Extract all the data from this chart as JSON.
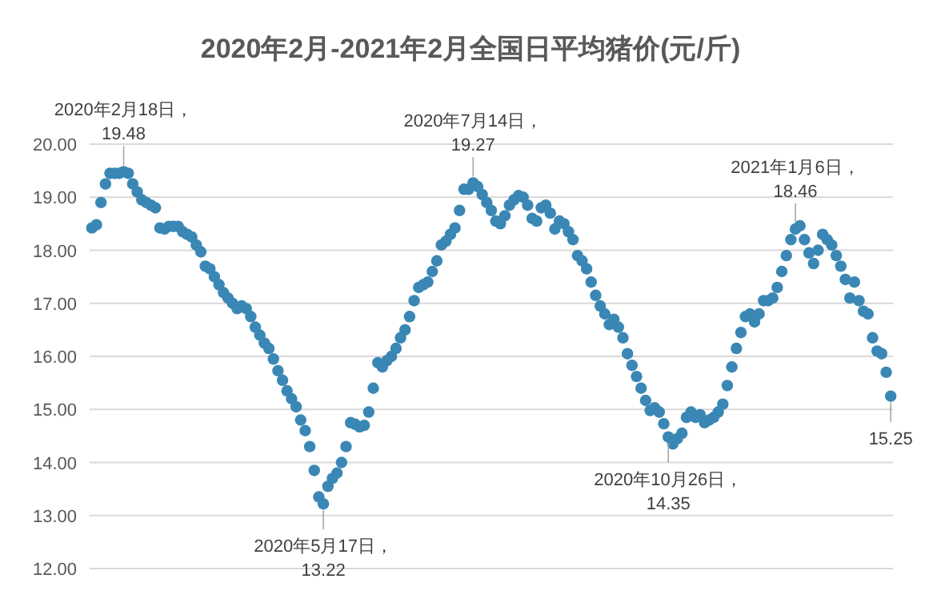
{
  "chart_data": {
    "type": "scatter",
    "title": "2020年2月-2021年2月全国日平均猪价(元/斤)",
    "color": "#3a87b5",
    "marker": "circle",
    "grid": "y",
    "tick_labels": "y",
    "ylim": [
      12,
      20
    ],
    "yticks": [
      {
        "value": 12,
        "label": "12.00"
      },
      {
        "value": 13,
        "label": "13.00"
      },
      {
        "value": 14,
        "label": "14.00"
      },
      {
        "value": 15,
        "label": "15.00"
      },
      {
        "value": 16,
        "label": "16.00"
      },
      {
        "value": 17,
        "label": "17.00"
      },
      {
        "value": 18,
        "label": "18.00"
      },
      {
        "value": 19,
        "label": "19.00"
      },
      {
        "value": 20,
        "label": "20.00"
      }
    ],
    "categories": [
      null,
      null,
      null,
      null,
      null,
      null,
      null,
      null,
      null,
      null,
      null,
      null,
      null,
      null,
      null,
      null,
      null,
      null,
      null,
      null,
      null,
      null,
      null,
      null,
      null,
      null,
      null,
      null,
      null,
      null,
      null,
      null,
      null,
      null,
      null,
      null,
      null,
      null,
      null,
      null,
      null,
      null,
      null,
      null,
      null,
      null,
      null,
      null,
      null,
      null,
      null,
      null,
      null,
      null,
      null,
      null,
      null,
      null,
      null,
      null,
      null,
      null,
      null,
      null,
      null,
      null,
      null,
      null,
      null,
      null,
      null,
      null,
      null,
      null,
      null,
      null,
      null,
      null,
      null,
      null,
      null,
      null,
      null,
      null,
      null,
      null,
      null,
      null,
      null,
      null,
      null,
      null,
      null,
      null,
      null,
      null,
      null,
      null,
      null,
      null,
      null,
      null,
      null,
      null,
      null,
      null,
      null,
      null,
      null,
      null,
      null,
      null,
      null,
      null,
      null,
      null,
      null,
      null,
      null,
      null,
      null,
      null,
      null,
      null,
      null,
      null,
      null,
      null,
      null,
      null,
      null,
      null,
      null,
      null,
      null,
      null,
      null,
      null,
      null,
      null,
      null,
      null,
      null,
      null,
      null,
      null,
      null,
      null,
      null,
      null,
      null,
      null,
      null,
      null,
      null,
      null,
      null,
      null,
      null,
      null,
      null,
      null,
      null,
      null,
      null,
      null,
      null,
      null,
      null,
      null,
      null,
      null,
      null,
      null,
      null,
      null,
      null
    ],
    "values": [
      18.42,
      18.48,
      18.9,
      19.25,
      19.45,
      19.45,
      19.45,
      19.48,
      19.45,
      19.25,
      19.1,
      18.95,
      18.9,
      18.85,
      18.8,
      18.42,
      18.4,
      18.45,
      18.45,
      18.45,
      18.35,
      18.3,
      18.25,
      18.1,
      17.97,
      17.7,
      17.65,
      17.5,
      17.35,
      17.2,
      17.1,
      17.0,
      16.9,
      16.95,
      16.9,
      16.75,
      16.55,
      16.4,
      16.25,
      16.15,
      15.95,
      15.73,
      15.55,
      15.35,
      15.2,
      15.05,
      14.8,
      14.6,
      14.3,
      13.85,
      13.35,
      13.22,
      13.55,
      13.7,
      13.8,
      14.0,
      14.3,
      14.75,
      14.72,
      14.67,
      14.7,
      14.95,
      15.4,
      15.88,
      15.8,
      15.92,
      16.0,
      16.15,
      16.35,
      16.5,
      16.75,
      17.05,
      17.3,
      17.35,
      17.4,
      17.6,
      17.8,
      18.1,
      18.17,
      18.3,
      18.42,
      18.75,
      19.15,
      19.15,
      19.27,
      19.2,
      19.05,
      18.9,
      18.75,
      18.55,
      18.5,
      18.65,
      18.85,
      18.95,
      19.03,
      19.0,
      18.85,
      18.6,
      18.55,
      18.8,
      18.85,
      18.7,
      18.4,
      18.55,
      18.5,
      18.35,
      18.2,
      17.9,
      17.8,
      17.65,
      17.4,
      17.15,
      16.95,
      16.8,
      16.6,
      16.7,
      16.55,
      16.35,
      16.05,
      15.83,
      15.62,
      15.4,
      15.17,
      14.98,
      15.03,
      14.95,
      14.73,
      14.48,
      14.35,
      14.45,
      14.55,
      14.85,
      14.95,
      14.85,
      14.9,
      14.75,
      14.8,
      14.85,
      14.95,
      15.1,
      15.45,
      15.8,
      16.15,
      16.45,
      16.75,
      16.8,
      16.65,
      16.8,
      17.05,
      17.05,
      17.1,
      17.3,
      17.6,
      17.9,
      18.2,
      18.4,
      18.46,
      18.2,
      17.95,
      17.75,
      18.0,
      18.3,
      18.2,
      18.1,
      17.9,
      17.7,
      17.45,
      17.1,
      17.4,
      17.05,
      16.85,
      16.8,
      16.35,
      16.1,
      16.05,
      15.7,
      15.25
    ],
    "value_labels": [
      null,
      null,
      null,
      null,
      null,
      null,
      null,
      "2020年2月18日，\n19.48",
      null,
      null,
      null,
      null,
      null,
      null,
      null,
      null,
      null,
      null,
      null,
      null,
      null,
      null,
      null,
      null,
      null,
      null,
      null,
      null,
      null,
      null,
      null,
      null,
      null,
      null,
      null,
      null,
      null,
      null,
      null,
      null,
      null,
      null,
      null,
      null,
      null,
      null,
      null,
      null,
      null,
      null,
      null,
      "2020年5月17日，\n13.22",
      null,
      null,
      null,
      null,
      null,
      null,
      null,
      null,
      null,
      null,
      null,
      null,
      null,
      null,
      null,
      null,
      null,
      null,
      null,
      null,
      null,
      null,
      null,
      null,
      null,
      null,
      null,
      null,
      null,
      null,
      null,
      null,
      "2020年7月14日，\n19.27",
      null,
      null,
      null,
      null,
      null,
      null,
      null,
      null,
      null,
      null,
      null,
      null,
      null,
      null,
      null,
      null,
      null,
      null,
      null,
      null,
      null,
      null,
      null,
      null,
      null,
      null,
      null,
      null,
      null,
      null,
      null,
      null,
      null,
      null,
      null,
      null,
      null,
      null,
      null,
      null,
      null,
      null,
      "2020年10月26日，\n14.35",
      null,
      null,
      null,
      null,
      null,
      null,
      null,
      null,
      null,
      null,
      null,
      null,
      null,
      null,
      null,
      null,
      null,
      null,
      null,
      null,
      null,
      null,
      null,
      null,
      null,
      null,
      null,
      "2021年1月6日，\n18.46",
      null,
      null,
      null,
      null,
      null,
      null,
      null,
      null,
      null,
      null,
      null,
      null,
      null,
      null,
      null,
      null,
      null,
      null,
      null,
      null,
      "15.25"
    ]
  }
}
